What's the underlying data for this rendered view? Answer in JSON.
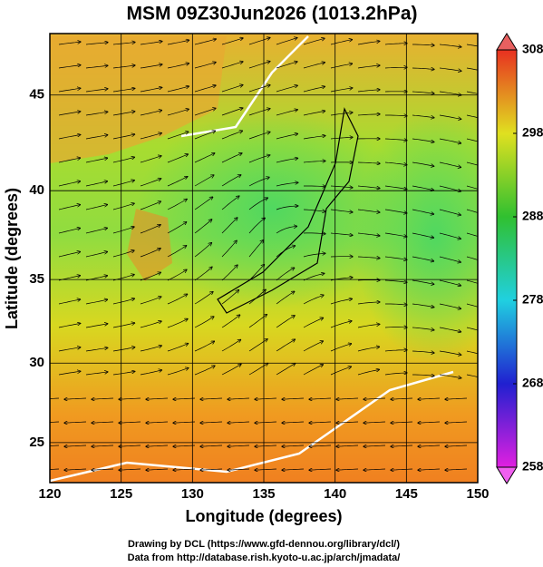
{
  "chart_data": {
    "type": "map",
    "title": "MSM 09Z30Jun2026 (1013.2hPa)",
    "x_label": "Longitude (degrees)",
    "y_label": "Latitude  (degrees)",
    "xlim": [
      120,
      150
    ],
    "ylim": [
      22.4,
      48
    ],
    "projection": "mercator",
    "xticks": [
      120,
      125,
      130,
      135,
      140,
      145,
      150
    ],
    "yticks": [
      25,
      30,
      35,
      40,
      45
    ],
    "grid": true,
    "colorbar": {
      "lim": [
        258,
        308
      ],
      "ticks": [
        258,
        268,
        278,
        288,
        298,
        308
      ]
    },
    "footer": [
      "Drawing by DCL (https://www.gfd-dennou.org/library/dcl/)",
      "Data from http://database.rish.kyoto-u.ac.jp/arch/jmadata/"
    ]
  }
}
